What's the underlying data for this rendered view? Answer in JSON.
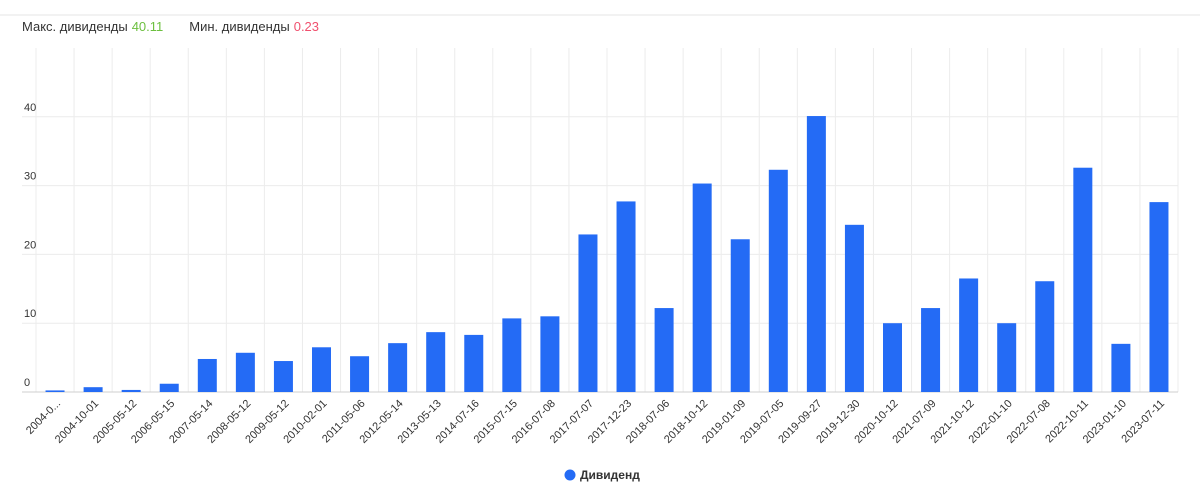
{
  "header": {
    "max_label": "Макс. дивиденды",
    "max_value": 40.11,
    "min_label": "Мин. дивиденды",
    "min_value": 0.23
  },
  "chart_data": {
    "type": "bar",
    "categories": [
      "2004-0...",
      "2004-10-01",
      "2005-05-12",
      "2006-05-15",
      "2007-05-14",
      "2008-05-12",
      "2009-05-12",
      "2010-02-01",
      "2011-05-06",
      "2012-05-14",
      "2013-05-13",
      "2014-07-16",
      "2015-07-15",
      "2016-07-08",
      "2017-07-07",
      "2017-12-23",
      "2018-07-06",
      "2018-10-12",
      "2019-01-09",
      "2019-07-05",
      "2019-09-27",
      "2019-12-30",
      "2020-10-12",
      "2021-07-09",
      "2021-10-12",
      "2022-01-10",
      "2022-07-08",
      "2022-10-11",
      "2023-01-10",
      "2023-07-11"
    ],
    "series": [
      {
        "name": "Дивиденд",
        "color": "#246bf5",
        "values": [
          0.23,
          0.7,
          0.3,
          1.2,
          4.8,
          5.7,
          4.5,
          6.5,
          5.2,
          7.1,
          8.7,
          8.3,
          10.7,
          11.0,
          22.9,
          27.7,
          12.2,
          30.3,
          22.2,
          32.3,
          40.11,
          24.3,
          10.0,
          12.2,
          16.5,
          10.0,
          16.1,
          32.6,
          7.0,
          27.6
        ]
      }
    ],
    "ylim": [
      0,
      50
    ],
    "yticks": [
      0,
      10,
      20,
      30,
      40
    ],
    "grid": true,
    "legend": "bottom"
  }
}
